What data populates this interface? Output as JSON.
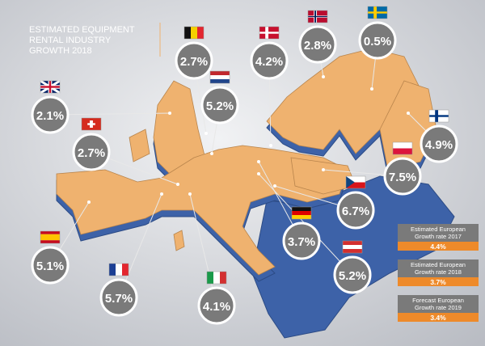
{
  "title_lines": [
    "ESTIMATED EQUIPMENT",
    "RENTAL INDUSTRY",
    "GROWTH 2018"
  ],
  "country_values": [
    "2.7%",
    "4.2%",
    "2.8%",
    "0.5%",
    "5.2%",
    "2.1%",
    "4.9%",
    "2.7%",
    "7.5%",
    "6.7%",
    "3.7%",
    "5.1%",
    "5.7%",
    "4.1%",
    "5.2%"
  ],
  "summary": [
    {
      "caption_lines": [
        "Estimated European",
        "Growth rate 2017"
      ],
      "value": "4.4%"
    },
    {
      "caption_lines": [
        "Estimated European",
        "Growth rate 2018"
      ],
      "value": "3.7%"
    },
    {
      "caption_lines": [
        "Forecast European",
        "Growth rate 2019"
      ],
      "value": "3.4%"
    }
  ]
}
